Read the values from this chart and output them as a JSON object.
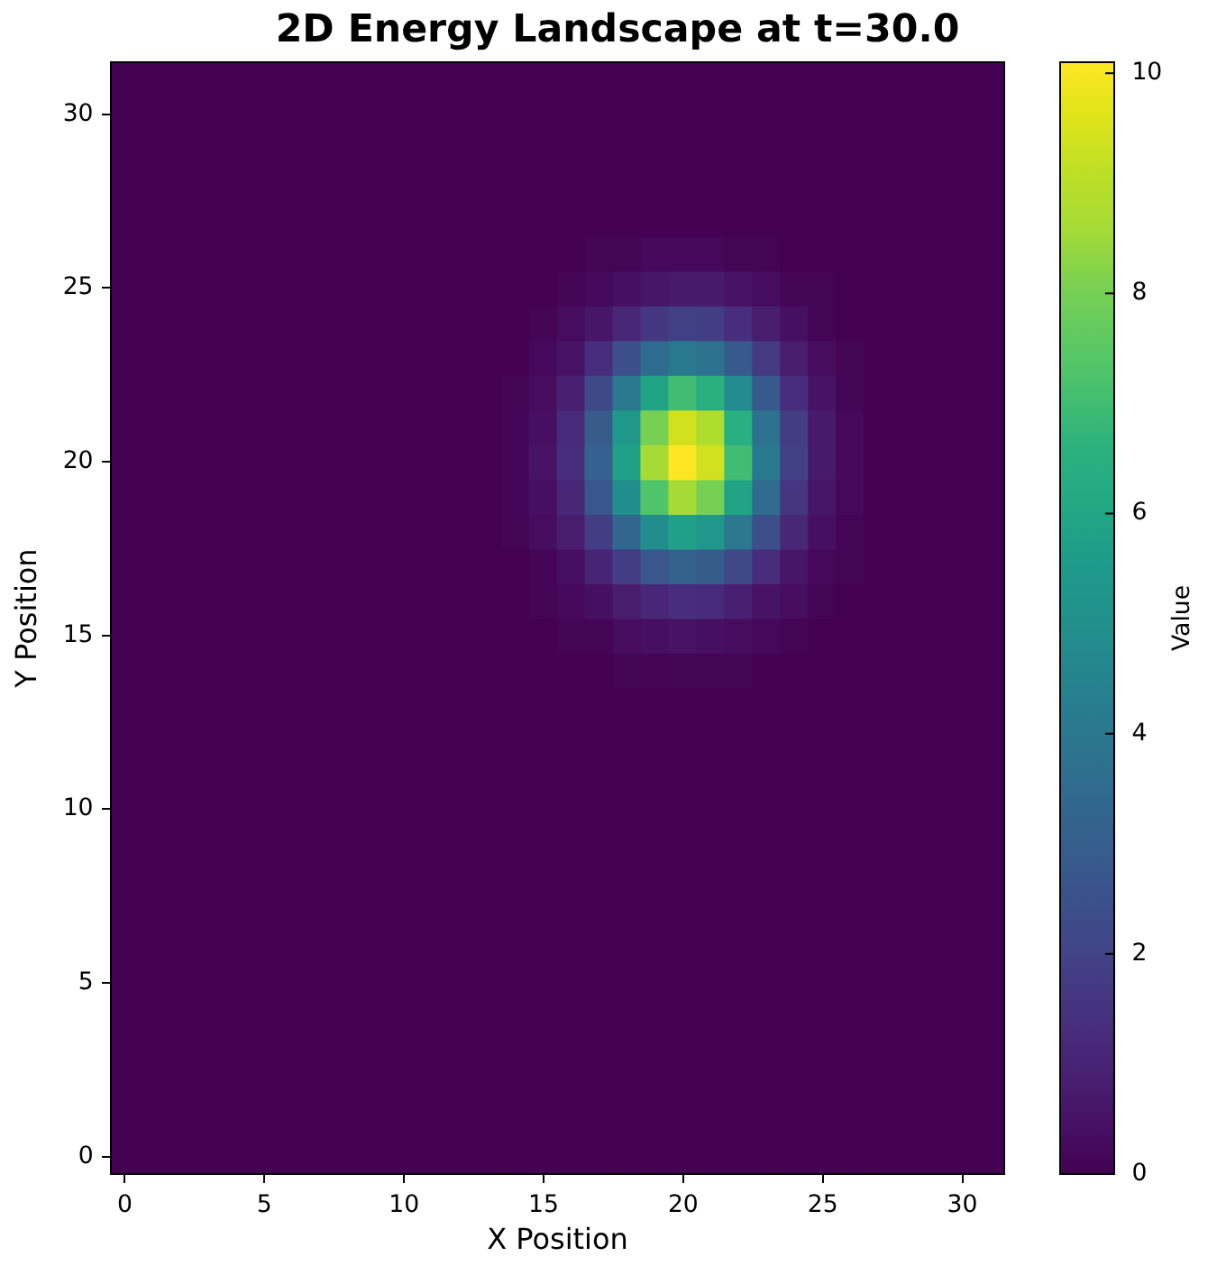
{
  "chart_data": {
    "type": "heatmap",
    "title": "2D Energy Landscape at t=30.0",
    "xlabel": "X Position",
    "ylabel": "Y Position",
    "clabel": "Value",
    "categories": [
      "0",
      null,
      null,
      null,
      null,
      "5",
      null,
      null,
      null,
      null,
      "10",
      null,
      null,
      null,
      null,
      "15",
      null,
      null,
      null,
      null,
      "20",
      null,
      null,
      null,
      null,
      "25",
      null,
      null,
      null,
      null,
      "30",
      null
    ],
    "y_categories": [
      null,
      "30",
      null,
      null,
      null,
      null,
      "25",
      null,
      null,
      null,
      null,
      "20",
      null,
      null,
      null,
      null,
      "15",
      null,
      null,
      null,
      null,
      "10",
      null,
      null,
      null,
      null,
      "5",
      null,
      null,
      null,
      null,
      "0"
    ],
    "clim": [
      0,
      10.1
    ],
    "cticks": [
      0,
      2,
      4,
      6,
      8,
      10
    ],
    "cells": [
      [
        0,
        0,
        0,
        0,
        0,
        0,
        0,
        0,
        0,
        0,
        0,
        0,
        0,
        0,
        0,
        0,
        0,
        0,
        0,
        0,
        0,
        0,
        0,
        0,
        0,
        0,
        0,
        0,
        0,
        0,
        0,
        0
      ],
      [
        0,
        0,
        0,
        0,
        0,
        0,
        0,
        0,
        0,
        0,
        0,
        0,
        0,
        0,
        0,
        0,
        0,
        0,
        0,
        0,
        0,
        0,
        0,
        0,
        0,
        0,
        0,
        0,
        0,
        0,
        0,
        0
      ],
      [
        0,
        0,
        0,
        0,
        0,
        0,
        0,
        0,
        0,
        0,
        0,
        0,
        0,
        0,
        0,
        0,
        0,
        0,
        0,
        0,
        0,
        0,
        0,
        0,
        0,
        0,
        0,
        0,
        0,
        0,
        0,
        0
      ],
      [
        0,
        0,
        0,
        0,
        0,
        0,
        0,
        0,
        0,
        0,
        0,
        0,
        0,
        0,
        0,
        0,
        0,
        0,
        0,
        0,
        0,
        0,
        0,
        0,
        0,
        0,
        0,
        0,
        0,
        0,
        0,
        0
      ],
      [
        0,
        0,
        0,
        0,
        0,
        0,
        0,
        0,
        0,
        0,
        0,
        0,
        0,
        0,
        0,
        0,
        0,
        0,
        0,
        0,
        0,
        0,
        0,
        0,
        0,
        0,
        0,
        0,
        0,
        0,
        0,
        0
      ],
      [
        0,
        0,
        0,
        0,
        0,
        0,
        0,
        0,
        0,
        0,
        0,
        0,
        0,
        0,
        0,
        0,
        0,
        0.1,
        0.1,
        0.2,
        0.2,
        0.2,
        0.1,
        0.1,
        0,
        0,
        0,
        0,
        0,
        0,
        0,
        0
      ],
      [
        0,
        0,
        0,
        0,
        0,
        0,
        0,
        0,
        0,
        0,
        0,
        0,
        0,
        0,
        0,
        0,
        0.1,
        0.2,
        0.4,
        0.6,
        0.7,
        0.7,
        0.5,
        0.3,
        0.1,
        0.1,
        0,
        0,
        0,
        0,
        0,
        0
      ],
      [
        0,
        0,
        0,
        0,
        0,
        0,
        0,
        0,
        0,
        0,
        0,
        0,
        0,
        0,
        0,
        0.1,
        0.3,
        0.6,
        1.1,
        1.6,
        1.9,
        1.8,
        1.3,
        0.8,
        0.4,
        0.1,
        0,
        0,
        0,
        0,
        0,
        0
      ],
      [
        0,
        0,
        0,
        0,
        0,
        0,
        0,
        0,
        0,
        0,
        0,
        0,
        0,
        0,
        0,
        0.2,
        0.5,
        1.3,
        2.4,
        3.5,
        4.1,
        3.8,
        2.8,
        1.7,
        0.8,
        0.3,
        0.1,
        0,
        0,
        0,
        0,
        0
      ],
      [
        0,
        0,
        0,
        0,
        0,
        0,
        0,
        0,
        0,
        0,
        0,
        0,
        0,
        0,
        0.1,
        0.3,
        0.9,
        2.2,
        4,
        5.9,
        7,
        6.5,
        4.8,
        2.8,
        1.3,
        0.5,
        0.1,
        0,
        0,
        0,
        0,
        0
      ],
      [
        0,
        0,
        0,
        0,
        0,
        0,
        0,
        0,
        0,
        0,
        0,
        0,
        0,
        0,
        0.1,
        0.4,
        1.2,
        2.9,
        5.4,
        8,
        9.4,
        8.8,
        6.5,
        3.8,
        1.8,
        0.7,
        0.2,
        0,
        0,
        0,
        0,
        0
      ],
      [
        0,
        0,
        0,
        0,
        0,
        0,
        0,
        0,
        0,
        0,
        0,
        0,
        0,
        0,
        0.1,
        0.5,
        1.3,
        3.1,
        5.8,
        8.6,
        10.1,
        9.4,
        7,
        4.1,
        1.9,
        0.7,
        0.2,
        0,
        0,
        0,
        0,
        0
      ],
      [
        0,
        0,
        0,
        0,
        0,
        0,
        0,
        0,
        0,
        0,
        0,
        0,
        0,
        0,
        0.1,
        0.4,
        1.1,
        2.7,
        4.9,
        7.3,
        8.6,
        8,
        5.9,
        3.5,
        1.6,
        0.6,
        0.2,
        0,
        0,
        0,
        0,
        0
      ],
      [
        0,
        0,
        0,
        0,
        0,
        0,
        0,
        0,
        0,
        0,
        0,
        0,
        0,
        0,
        0.1,
        0.3,
        0.8,
        1.8,
        3.3,
        4.9,
        5.8,
        5.4,
        4,
        2.4,
        1.1,
        0.4,
        0.1,
        0,
        0,
        0,
        0,
        0
      ],
      [
        0,
        0,
        0,
        0,
        0,
        0,
        0,
        0,
        0,
        0,
        0,
        0,
        0,
        0,
        0,
        0.1,
        0.4,
        1,
        1.8,
        2.7,
        3.1,
        2.9,
        2.2,
        1.3,
        0.6,
        0.2,
        0.1,
        0,
        0,
        0,
        0,
        0
      ],
      [
        0,
        0,
        0,
        0,
        0,
        0,
        0,
        0,
        0,
        0,
        0,
        0,
        0,
        0,
        0,
        0.1,
        0.2,
        0.4,
        0.8,
        1.1,
        1.3,
        1.2,
        0.9,
        0.5,
        0.3,
        0.1,
        0,
        0,
        0,
        0,
        0,
        0
      ],
      [
        0,
        0,
        0,
        0,
        0,
        0,
        0,
        0,
        0,
        0,
        0,
        0,
        0,
        0,
        0,
        0,
        0.1,
        0.1,
        0.3,
        0.4,
        0.5,
        0.4,
        0.3,
        0.2,
        0.1,
        0,
        0,
        0,
        0,
        0,
        0,
        0
      ],
      [
        0,
        0,
        0,
        0,
        0,
        0,
        0,
        0,
        0,
        0,
        0,
        0,
        0,
        0,
        0,
        0,
        0,
        0,
        0.1,
        0.1,
        0.1,
        0.1,
        0.1,
        0,
        0,
        0,
        0,
        0,
        0,
        0,
        0,
        0
      ],
      [
        0,
        0,
        0,
        0,
        0,
        0,
        0,
        0,
        0,
        0,
        0,
        0,
        0,
        0,
        0,
        0,
        0,
        0,
        0,
        0,
        0,
        0,
        0,
        0,
        0,
        0,
        0,
        0,
        0,
        0,
        0,
        0
      ],
      [
        0,
        0,
        0,
        0,
        0,
        0,
        0,
        0,
        0,
        0,
        0,
        0,
        0,
        0,
        0,
        0,
        0,
        0,
        0,
        0,
        0,
        0,
        0,
        0,
        0,
        0,
        0,
        0,
        0,
        0,
        0,
        0
      ],
      [
        0,
        0,
        0,
        0,
        0,
        0,
        0,
        0,
        0,
        0,
        0,
        0,
        0,
        0,
        0,
        0,
        0,
        0,
        0,
        0,
        0,
        0,
        0,
        0,
        0,
        0,
        0,
        0,
        0,
        0,
        0,
        0
      ],
      [
        0,
        0,
        0,
        0,
        0,
        0,
        0,
        0,
        0,
        0,
        0,
        0,
        0,
        0,
        0,
        0,
        0,
        0,
        0,
        0,
        0,
        0,
        0,
        0,
        0,
        0,
        0,
        0,
        0,
        0,
        0,
        0
      ],
      [
        0,
        0,
        0,
        0,
        0,
        0,
        0,
        0,
        0,
        0,
        0,
        0,
        0,
        0,
        0,
        0,
        0,
        0,
        0,
        0,
        0,
        0,
        0,
        0,
        0,
        0,
        0,
        0,
        0,
        0,
        0,
        0
      ],
      [
        0,
        0,
        0,
        0,
        0,
        0,
        0,
        0,
        0,
        0,
        0,
        0,
        0,
        0,
        0,
        0,
        0,
        0,
        0,
        0,
        0,
        0,
        0,
        0,
        0,
        0,
        0,
        0,
        0,
        0,
        0,
        0
      ],
      [
        0,
        0,
        0,
        0,
        0,
        0,
        0,
        0,
        0,
        0,
        0,
        0,
        0,
        0,
        0,
        0,
        0,
        0,
        0,
        0,
        0,
        0,
        0,
        0,
        0,
        0,
        0,
        0,
        0,
        0,
        0,
        0
      ],
      [
        0,
        0,
        0,
        0,
        0,
        0,
        0,
        0,
        0,
        0,
        0,
        0,
        0,
        0,
        0,
        0,
        0,
        0,
        0,
        0,
        0,
        0,
        0,
        0,
        0,
        0,
        0,
        0,
        0,
        0,
        0,
        0
      ],
      [
        0,
        0,
        0,
        0,
        0,
        0,
        0,
        0,
        0,
        0,
        0,
        0,
        0,
        0,
        0,
        0,
        0,
        0,
        0,
        0,
        0,
        0,
        0,
        0,
        0,
        0,
        0,
        0,
        0,
        0,
        0,
        0
      ],
      [
        0,
        0,
        0,
        0,
        0,
        0,
        0,
        0,
        0,
        0,
        0,
        0,
        0,
        0,
        0,
        0,
        0,
        0,
        0,
        0,
        0,
        0,
        0,
        0,
        0,
        0,
        0,
        0,
        0,
        0,
        0,
        0
      ],
      [
        0,
        0,
        0,
        0,
        0,
        0,
        0,
        0,
        0,
        0,
        0,
        0,
        0,
        0,
        0,
        0,
        0,
        0,
        0,
        0,
        0,
        0,
        0,
        0,
        0,
        0,
        0,
        0,
        0,
        0,
        0,
        0
      ],
      [
        0,
        0,
        0,
        0,
        0,
        0,
        0,
        0,
        0,
        0,
        0,
        0,
        0,
        0,
        0,
        0,
        0,
        0,
        0,
        0,
        0,
        0,
        0,
        0,
        0,
        0,
        0,
        0,
        0,
        0,
        0,
        0
      ],
      [
        0,
        0,
        0,
        0,
        0,
        0,
        0,
        0,
        0,
        0,
        0,
        0,
        0,
        0,
        0,
        0,
        0,
        0,
        0,
        0,
        0,
        0,
        0,
        0,
        0,
        0,
        0,
        0,
        0,
        0,
        0,
        0
      ],
      [
        0,
        0,
        0,
        0,
        0,
        0,
        0,
        0,
        0,
        0,
        0,
        0,
        0,
        0,
        0,
        0,
        0,
        0,
        0,
        0,
        0,
        0,
        0,
        0,
        0,
        0,
        0,
        0,
        0,
        0,
        0,
        0
      ]
    ]
  }
}
